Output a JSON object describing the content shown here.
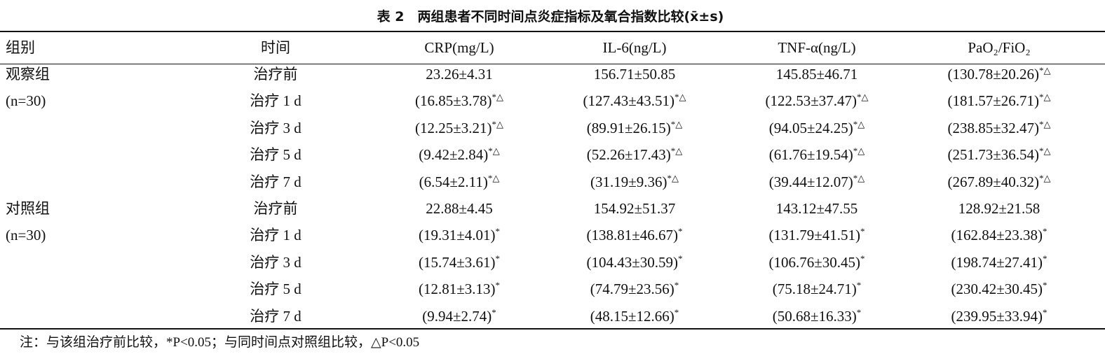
{
  "title": "表 2　两组患者不同时间点炎症指标及氧合指数比较(x̄±s)",
  "table": {
    "header": [
      "组别",
      "时间",
      "CRP(mg/L)",
      "IL-6(ng/L)",
      "TNF-α(ng/L)",
      "PaO₂/FiO₂"
    ],
    "rows": [
      {
        "group": "观察组",
        "time": "治疗前",
        "cells": [
          {
            "text": "23.26±4.31"
          },
          {
            "text": "156.71±50.85"
          },
          {
            "text": "145.85±46.71"
          },
          {
            "text": "(130.78±20.26)",
            "sup": "*△"
          }
        ]
      },
      {
        "group": "(n=30)",
        "time": "治疗 1 d",
        "cells": [
          {
            "text": "(16.85±3.78)",
            "sup": "*△"
          },
          {
            "text": "(127.43±43.51)",
            "sup": "*△"
          },
          {
            "text": "(122.53±37.47)",
            "sup": "*△"
          },
          {
            "text": "(181.57±26.71)",
            "sup": "*△"
          }
        ]
      },
      {
        "time": "治疗 3 d",
        "cells": [
          {
            "text": "(12.25±3.21)",
            "sup": "*△"
          },
          {
            "text": "(89.91±26.15)",
            "sup": "*△"
          },
          {
            "text": "(94.05±24.25)",
            "sup": "*△"
          },
          {
            "text": "(238.85±32.47)",
            "sup": "*△"
          }
        ]
      },
      {
        "time": "治疗 5 d",
        "cells": [
          {
            "text": "(9.42±2.84)",
            "sup": "*△"
          },
          {
            "text": "(52.26±17.43)",
            "sup": "*△"
          },
          {
            "text": "(61.76±19.54)",
            "sup": "*△"
          },
          {
            "text": "(251.73±36.54)",
            "sup": "*△"
          }
        ]
      },
      {
        "time": "治疗 7 d",
        "cells": [
          {
            "text": "(6.54±2.11)",
            "sup": "*△"
          },
          {
            "text": "(31.19±9.36)",
            "sup": "*△"
          },
          {
            "text": "(39.44±12.07)",
            "sup": "*△"
          },
          {
            "text": "(267.89±40.32)",
            "sup": "*△"
          }
        ]
      },
      {
        "group": "对照组",
        "time": "治疗前",
        "cells": [
          {
            "text": "22.88±4.45"
          },
          {
            "text": "154.92±51.37"
          },
          {
            "text": "143.12±47.55"
          },
          {
            "text": "128.92±21.58"
          }
        ]
      },
      {
        "group": "(n=30)",
        "time": "治疗 1 d",
        "cells": [
          {
            "text": "(19.31±4.01)",
            "sup": "*"
          },
          {
            "text": "(138.81±46.67)",
            "sup": "*"
          },
          {
            "text": "(131.79±41.51)",
            "sup": "*"
          },
          {
            "text": "(162.84±23.38)",
            "sup": "*"
          }
        ]
      },
      {
        "time": "治疗 3 d",
        "cells": [
          {
            "text": "(15.74±3.61)",
            "sup": "*"
          },
          {
            "text": "(104.43±30.59)",
            "sup": "*"
          },
          {
            "text": "(106.76±30.45)",
            "sup": "*"
          },
          {
            "text": "(198.74±27.41)",
            "sup": "*"
          }
        ]
      },
      {
        "time": "治疗 5 d",
        "cells": [
          {
            "text": "(12.81±3.13)",
            "sup": "*"
          },
          {
            "text": "(74.79±23.56)",
            "sup": "*"
          },
          {
            "text": "(75.18±24.71)",
            "sup": "*"
          },
          {
            "text": "(230.42±30.45)",
            "sup": "*"
          }
        ]
      },
      {
        "time": "治疗 7 d",
        "cells": [
          {
            "text": "(9.94±2.74)",
            "sup": "*"
          },
          {
            "text": "(48.15±12.66)",
            "sup": "*"
          },
          {
            "text": "(50.68±16.33)",
            "sup": "*"
          },
          {
            "text": "(239.95±33.94)",
            "sup": "*"
          }
        ]
      }
    ]
  },
  "footnote": "注：与该组治疗前比较，*P<0.05；与同时间点对照组比较，△P<0.05"
}
